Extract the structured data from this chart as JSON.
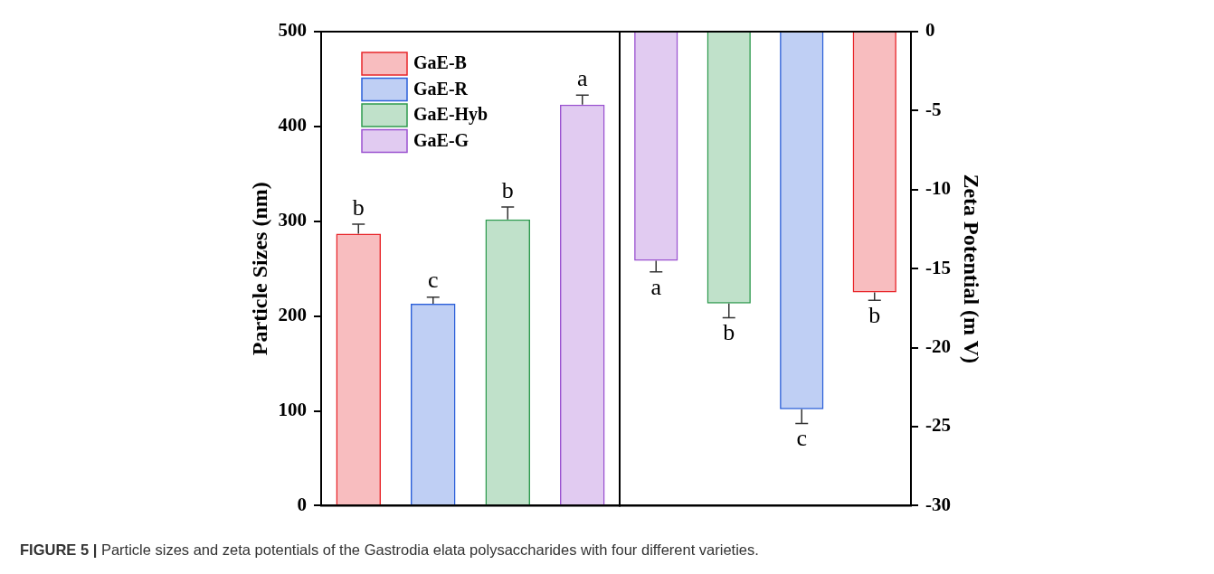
{
  "chart_data": [
    {
      "type": "bar",
      "ylabel": "Particle Sizes (nm)",
      "categories": [
        null,
        null,
        null,
        null
      ],
      "series": [
        {
          "name": "GaE-B",
          "color": "#e8262a",
          "values": [
            287,
            null,
            null,
            null
          ],
          "errors": [
            [
              287,
              297
            ],
            null,
            null,
            null
          ],
          "value_labels": [
            "b",
            null,
            null,
            null
          ]
        },
        {
          "name": "GaE-R",
          "color": "#2b5fd9",
          "values": [
            null,
            213,
            null,
            null
          ],
          "errors": [
            null,
            [
              213,
              220
            ],
            null,
            null
          ],
          "value_labels": [
            null,
            "c",
            null,
            null
          ]
        },
        {
          "name": "GaE-Hyb",
          "color": "#2e9a4e",
          "values": [
            null,
            null,
            302,
            null
          ],
          "errors": [
            null,
            null,
            [
              302,
              315
            ],
            null
          ],
          "value_labels": [
            null,
            null,
            "b",
            null
          ]
        },
        {
          "name": "GaE-G",
          "color": "#9a52d0",
          "values": [
            null,
            null,
            null,
            423
          ],
          "errors": [
            null,
            null,
            null,
            [
              423,
              433
            ]
          ],
          "value_labels": [
            null,
            null,
            null,
            "a"
          ]
        }
      ],
      "ylim": [
        0,
        500
      ],
      "yticks": [
        0,
        100,
        200,
        300,
        400,
        500
      ],
      "legend": "top left",
      "annotations": [
        "FIGURE 5 |",
        "Particle sizes and zeta potentials of the Gastrodia elata polysaccharides with four different varieties."
      ]
    },
    {
      "type": "bar",
      "ylabel": "Zeta Potential (m V)",
      "categories": [
        null,
        null,
        null,
        null
      ],
      "values": [
        -14.5,
        -17.2,
        -23.9,
        -16.5
      ],
      "colors": [
        "#9a52d0",
        "#2e9a4e",
        "#2b5fd9",
        "#e8262a"
      ],
      "errors": [
        [
          -15.2,
          -14.5
        ],
        [
          -18.1,
          -17.2
        ],
        [
          -24.8,
          -23.9
        ],
        [
          -17.0,
          -16.5
        ]
      ],
      "value_labels": [
        "a",
        "b",
        "c",
        "b"
      ],
      "ylim": [
        -30,
        0
      ],
      "yticks": [
        -30,
        -25,
        -20,
        -15,
        -10,
        -5,
        0
      ]
    }
  ]
}
